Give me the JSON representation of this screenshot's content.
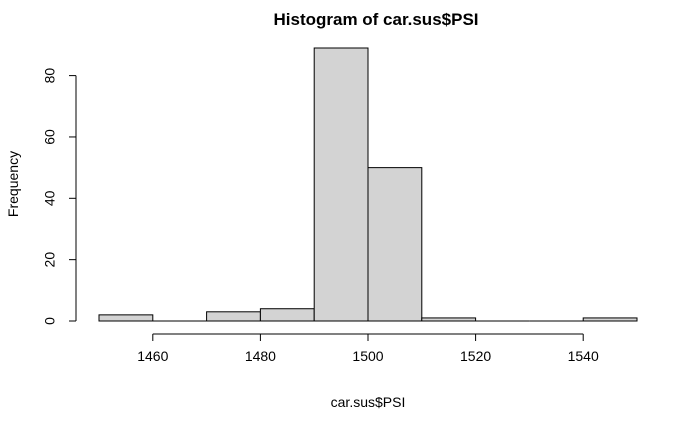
{
  "chart_data": {
    "type": "bar",
    "title": "Histogram of car.sus$PSI",
    "xlabel": "car.sus$PSI",
    "ylabel": "Frequency",
    "bins": [
      {
        "start": 1450,
        "end": 1460,
        "count": 2
      },
      {
        "start": 1460,
        "end": 1470,
        "count": 0
      },
      {
        "start": 1470,
        "end": 1480,
        "count": 3
      },
      {
        "start": 1480,
        "end": 1490,
        "count": 4
      },
      {
        "start": 1490,
        "end": 1500,
        "count": 89
      },
      {
        "start": 1500,
        "end": 1510,
        "count": 50
      },
      {
        "start": 1510,
        "end": 1520,
        "count": 1
      },
      {
        "start": 1520,
        "end": 1530,
        "count": 0
      },
      {
        "start": 1530,
        "end": 1540,
        "count": 0
      },
      {
        "start": 1540,
        "end": 1550,
        "count": 1
      }
    ],
    "xlim": [
      1450,
      1550
    ],
    "ylim": [
      0,
      89
    ],
    "xticks": [
      1460,
      1480,
      1500,
      1520,
      1540
    ],
    "yticks": [
      0,
      20,
      40,
      60,
      80
    ],
    "grid": false,
    "bar_color": "#d3d3d3"
  }
}
